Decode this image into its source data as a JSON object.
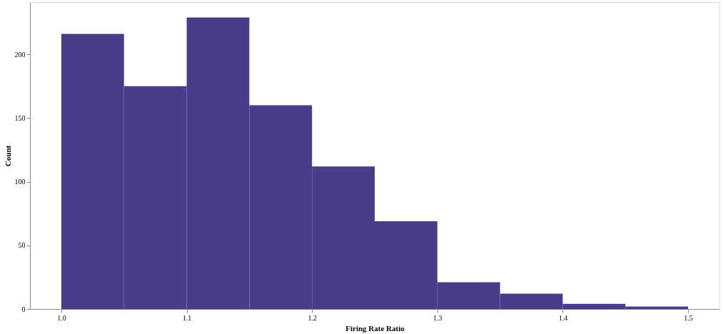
{
  "chart_data": {
    "type": "histogram",
    "xlabel": "Firing Rate Ratio",
    "ylabel": "Count",
    "bins": [
      1.0,
      1.05,
      1.1,
      1.15,
      1.2,
      1.25,
      1.3,
      1.35,
      1.4,
      1.45,
      1.5
    ],
    "values": [
      216,
      175,
      229,
      160,
      112,
      69,
      21,
      12,
      4,
      2
    ],
    "color": "#483d8b",
    "xlim": [
      0.975,
      1.525
    ],
    "xticks": [
      {
        "value": 1.0,
        "label": "1.0"
      },
      {
        "value": 1.1,
        "label": "1.1"
      },
      {
        "value": 1.2,
        "label": "1.2"
      },
      {
        "value": 1.3,
        "label": "1.3"
      },
      {
        "value": 1.4,
        "label": "1.4"
      },
      {
        "value": 1.5,
        "label": "1.5"
      }
    ],
    "ylim": [
      0,
      241
    ],
    "yticks": [
      0,
      50,
      100,
      150,
      200
    ],
    "grid": false
  }
}
